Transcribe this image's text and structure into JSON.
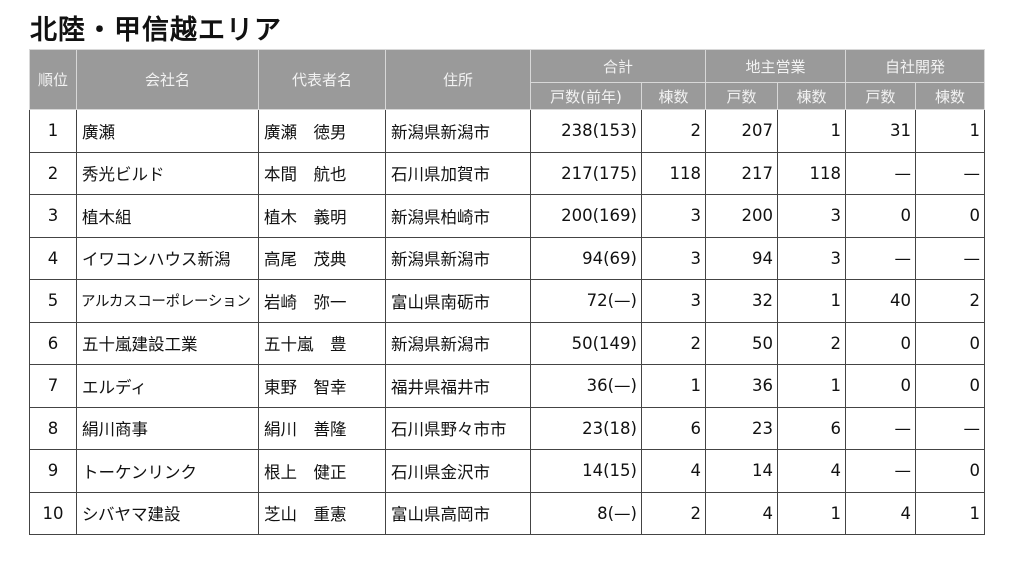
{
  "title": "北陸・甲信越エリア",
  "headers": {
    "rank": "順位",
    "company": "会社名",
    "representative": "代表者名",
    "address": "住所",
    "total": "合計",
    "landowner": "地主営業",
    "self_dev": "自社開発",
    "sub": {
      "units_prev": "戸数(前年)",
      "buildings": "棟数",
      "units": "戸数"
    }
  },
  "rows": [
    {
      "rank": "1",
      "company": "廣瀬",
      "rep": "廣瀬　徳男",
      "address": "新潟県新潟市",
      "total_units": "238(153)",
      "total_bldg": "2",
      "land_units": "207",
      "land_bldg": "1",
      "self_units": "31",
      "self_bldg": "1"
    },
    {
      "rank": "2",
      "company": "秀光ビルド",
      "rep": "本間　航也",
      "address": "石川県加賀市",
      "total_units": "217(175)",
      "total_bldg": "118",
      "land_units": "217",
      "land_bldg": "118",
      "self_units": "—",
      "self_bldg": "—"
    },
    {
      "rank": "3",
      "company": "植木組",
      "rep": "植木　義明",
      "address": "新潟県柏崎市",
      "total_units": "200(169)",
      "total_bldg": "3",
      "land_units": "200",
      "land_bldg": "3",
      "self_units": "0",
      "self_bldg": "0"
    },
    {
      "rank": "4",
      "company": "イワコンハウス新潟",
      "rep": "高尾　茂典",
      "address": "新潟県新潟市",
      "total_units": "94(69)",
      "total_bldg": "3",
      "land_units": "94",
      "land_bldg": "3",
      "self_units": "—",
      "self_bldg": "—"
    },
    {
      "rank": "5",
      "company": "アルカスコーポレーション",
      "rep": "岩崎　弥一",
      "address": "富山県南砺市",
      "total_units": "72(—)",
      "total_bldg": "3",
      "land_units": "32",
      "land_bldg": "1",
      "self_units": "40",
      "self_bldg": "2"
    },
    {
      "rank": "6",
      "company": "五十嵐建設工業",
      "rep": "五十嵐　豊",
      "address": "新潟県新潟市",
      "total_units": "50(149)",
      "total_bldg": "2",
      "land_units": "50",
      "land_bldg": "2",
      "self_units": "0",
      "self_bldg": "0"
    },
    {
      "rank": "7",
      "company": "エルディ",
      "rep": "東野　智幸",
      "address": "福井県福井市",
      "total_units": "36(—)",
      "total_bldg": "1",
      "land_units": "36",
      "land_bldg": "1",
      "self_units": "0",
      "self_bldg": "0"
    },
    {
      "rank": "8",
      "company": "絹川商事",
      "rep": "絹川　善隆",
      "address": "石川県野々市市",
      "total_units": "23(18)",
      "total_bldg": "6",
      "land_units": "23",
      "land_bldg": "6",
      "self_units": "—",
      "self_bldg": "—"
    },
    {
      "rank": "9",
      "company": "トーケンリンク",
      "rep": "根上　健正",
      "address": "石川県金沢市",
      "total_units": "14(15)",
      "total_bldg": "4",
      "land_units": "14",
      "land_bldg": "4",
      "self_units": "—",
      "self_bldg": "0"
    },
    {
      "rank": "10",
      "company": "シバヤマ建設",
      "rep": "芝山　重憲",
      "address": "富山県高岡市",
      "total_units": "8(—)",
      "total_bldg": "2",
      "land_units": "4",
      "land_bldg": "1",
      "self_units": "4",
      "self_bldg": "1"
    }
  ]
}
